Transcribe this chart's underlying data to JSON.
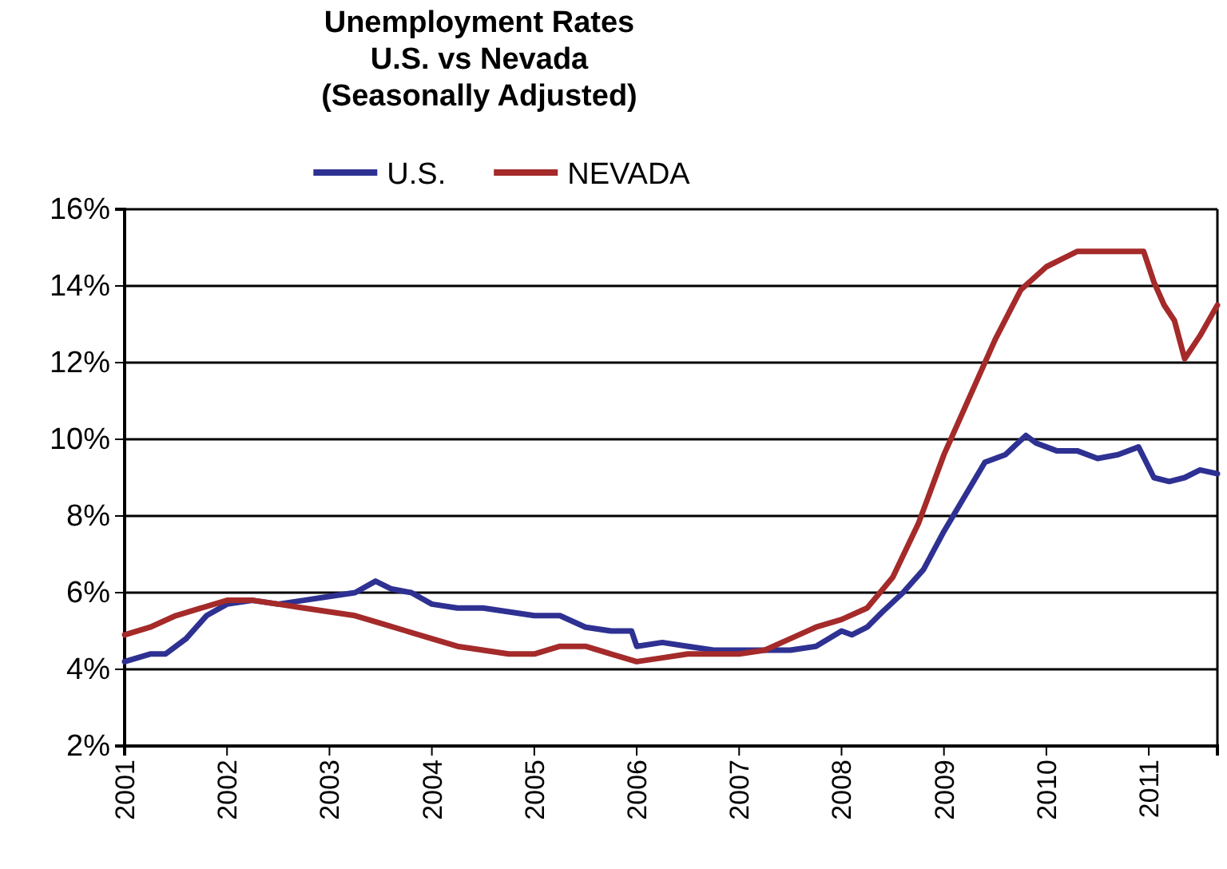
{
  "chart_data": {
    "type": "line",
    "title": "Unemployment Rates\nU.S. vs Nevada\n(Seasonally Adjusted)",
    "xlim": [
      2001,
      2011.67
    ],
    "xticks": [
      2001,
      2002,
      2003,
      2004,
      2005,
      2006,
      2007,
      2008,
      2009,
      2010,
      2011
    ],
    "ylim": [
      2,
      16
    ],
    "yticks": [
      {
        "value": 2,
        "label": "2%"
      },
      {
        "value": 4,
        "label": "4%"
      },
      {
        "value": 6,
        "label": "6%"
      },
      {
        "value": 8,
        "label": "8%"
      },
      {
        "value": 10,
        "label": "10%"
      },
      {
        "value": 12,
        "label": "12%"
      },
      {
        "value": 14,
        "label": "14%"
      },
      {
        "value": 16,
        "label": "16%"
      }
    ],
    "grid": "y",
    "legend": "top",
    "marker": "none",
    "line_style": "solid",
    "series": [
      {
        "name": "U.S.",
        "color": "#2e3192",
        "x": [
          2001,
          2001.25,
          2001.4,
          2001.6,
          2001.8,
          2002,
          2002.25,
          2002.5,
          2002.75,
          2003,
          2003.25,
          2003.45,
          2003.6,
          2003.8,
          2004,
          2004.25,
          2004.5,
          2004.75,
          2005,
          2005.25,
          2005.5,
          2005.75,
          2005.95,
          2006,
          2006.25,
          2006.5,
          2006.75,
          2007,
          2007.25,
          2007.5,
          2007.75,
          2008,
          2008.1,
          2008.25,
          2008.4,
          2008.6,
          2008.8,
          2009,
          2009.2,
          2009.4,
          2009.6,
          2009.8,
          2009.9,
          2010.1,
          2010.3,
          2010.5,
          2010.7,
          2010.9,
          2011.05,
          2011.2,
          2011.35,
          2011.5,
          2011.67
        ],
        "values": [
          4.2,
          4.4,
          4.4,
          4.8,
          5.4,
          5.7,
          5.8,
          5.7,
          5.8,
          5.9,
          6.0,
          6.3,
          6.1,
          6.0,
          5.7,
          5.6,
          5.6,
          5.5,
          5.4,
          5.4,
          5.1,
          5.0,
          5.0,
          4.6,
          4.7,
          4.6,
          4.5,
          4.5,
          4.5,
          4.5,
          4.6,
          5.0,
          4.9,
          5.1,
          5.5,
          6.0,
          6.6,
          7.6,
          8.5,
          9.4,
          9.6,
          10.1,
          9.9,
          9.7,
          9.7,
          9.5,
          9.6,
          9.8,
          9.0,
          8.9,
          9.0,
          9.2,
          9.1
        ]
      },
      {
        "name": "NEVADA",
        "color": "#a52a2a",
        "x": [
          2001,
          2001.25,
          2001.5,
          2001.75,
          2002,
          2002.25,
          2002.5,
          2002.75,
          2003,
          2003.25,
          2003.5,
          2003.75,
          2004,
          2004.25,
          2004.5,
          2004.75,
          2005,
          2005.25,
          2005.5,
          2005.75,
          2006,
          2006.25,
          2006.5,
          2006.75,
          2007,
          2007.25,
          2007.5,
          2007.75,
          2008,
          2008.25,
          2008.5,
          2008.75,
          2009,
          2009.25,
          2009.5,
          2009.75,
          2010,
          2010.15,
          2010.3,
          2010.5,
          2010.75,
          2010.95,
          2011.05,
          2011.15,
          2011.25,
          2011.35,
          2011.5,
          2011.67
        ],
        "values": [
          4.9,
          5.1,
          5.4,
          5.6,
          5.8,
          5.8,
          5.7,
          5.6,
          5.5,
          5.4,
          5.2,
          5.0,
          4.8,
          4.6,
          4.5,
          4.4,
          4.4,
          4.6,
          4.6,
          4.4,
          4.2,
          4.3,
          4.4,
          4.4,
          4.4,
          4.5,
          4.8,
          5.1,
          5.3,
          5.6,
          6.4,
          7.8,
          9.6,
          11.1,
          12.6,
          13.9,
          14.5,
          14.7,
          14.9,
          14.9,
          14.9,
          14.9,
          14.1,
          13.5,
          13.1,
          12.1,
          12.7,
          13.5
        ]
      }
    ]
  }
}
